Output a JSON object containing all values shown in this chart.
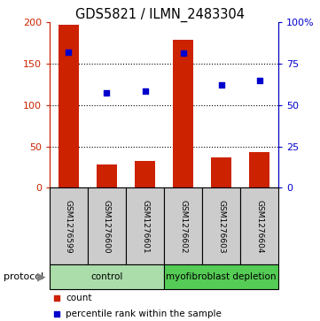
{
  "title": "GDS5821 / ILMN_2483304",
  "samples": [
    "GSM1276599",
    "GSM1276600",
    "GSM1276601",
    "GSM1276602",
    "GSM1276603",
    "GSM1276604"
  ],
  "bar_values": [
    197,
    28,
    33,
    179,
    37,
    43
  ],
  "percentile_values": [
    82,
    57.5,
    58.5,
    81.5,
    62.5,
    65
  ],
  "bar_color": "#cc2200",
  "point_color": "#0000cc",
  "ylim_left": [
    0,
    200
  ],
  "ylim_right": [
    0,
    100
  ],
  "yticks_left": [
    0,
    50,
    100,
    150,
    200
  ],
  "ytick_labels_left": [
    "0",
    "50",
    "100",
    "150",
    "200"
  ],
  "yticks_right": [
    0,
    25,
    50,
    75,
    100
  ],
  "ytick_labels_right": [
    "0",
    "25",
    "50",
    "75",
    "100%"
  ],
  "groups": [
    {
      "label": "control",
      "indices": [
        0,
        1,
        2
      ],
      "color": "#aaddaa"
    },
    {
      "label": "myofibroblast depletion",
      "indices": [
        3,
        4,
        5
      ],
      "color": "#55cc55"
    }
  ],
  "protocol_label": "protocol",
  "legend_items": [
    {
      "label": "count",
      "color": "#cc2200"
    },
    {
      "label": "percentile rank within the sample",
      "color": "#0000cc"
    }
  ],
  "grid_color": "#000000",
  "background_color": "#ffffff",
  "bar_width": 0.55,
  "sample_bg_color": "#cccccc"
}
